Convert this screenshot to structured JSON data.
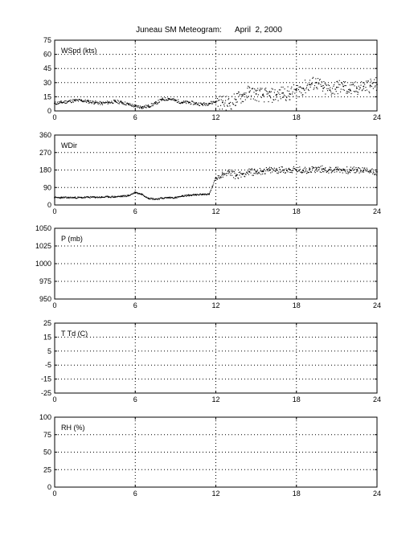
{
  "title": {
    "station": "Juneau SM Meteogram:",
    "date": "April  2, 2000"
  },
  "chart_data": [
    {
      "type": "scatter",
      "label": "WSpd (kts)",
      "xlim": [
        0,
        24
      ],
      "xticks": [
        "0",
        "6",
        "12",
        "18",
        "24"
      ],
      "ylim": [
        0,
        75
      ],
      "yticks": [
        "0",
        "15",
        "30",
        "45",
        "60",
        "75"
      ],
      "grid": true,
      "series": [
        {
          "x": [
            0,
            0.5,
            1,
            1.5,
            2,
            2.5,
            3,
            3.5,
            4,
            4.5,
            5,
            5.5,
            6,
            6.5,
            7,
            7.5,
            8,
            8.5,
            9,
            9.5,
            10,
            10.5,
            11,
            11.5,
            12,
            12.5,
            13,
            13.5,
            14,
            14.5,
            15,
            15.5,
            16,
            16.5,
            17,
            17.5,
            18,
            18.5,
            19,
            19.5,
            20,
            20.5,
            21,
            21.5,
            22,
            22.5,
            23,
            23.5,
            24
          ],
          "y": [
            8,
            9,
            10,
            11,
            11,
            10,
            9,
            8,
            9,
            10,
            9,
            7,
            5,
            4,
            5,
            8,
            12,
            13,
            11,
            9,
            9,
            8,
            7,
            8,
            10,
            9,
            8,
            12,
            16,
            20,
            18,
            17,
            16,
            17,
            19,
            18,
            22,
            24,
            28,
            30,
            24,
            22,
            25,
            26,
            22,
            24,
            26,
            27,
            28
          ]
        }
      ]
    },
    {
      "type": "scatter",
      "label": "WDir",
      "xlim": [
        0,
        24
      ],
      "xticks": [
        "0",
        "6",
        "12",
        "18",
        "24"
      ],
      "ylim": [
        0,
        360
      ],
      "yticks": [
        "0",
        "90",
        "180",
        "270",
        "360"
      ],
      "grid": true,
      "series": [
        {
          "x": [
            0,
            0.5,
            1,
            1.5,
            2,
            2.5,
            3,
            3.5,
            4,
            4.5,
            5,
            5.5,
            6,
            6.5,
            7,
            7.5,
            8,
            8.5,
            9,
            9.5,
            10,
            10.5,
            11,
            11.5,
            12,
            12.5,
            13,
            13.5,
            14,
            14.5,
            15,
            15.5,
            16,
            16.5,
            17,
            17.5,
            18,
            18.5,
            19,
            19.5,
            20,
            20.5,
            21,
            21.5,
            22,
            22.5,
            23,
            23.5,
            24
          ],
          "y": [
            38,
            38,
            38,
            38,
            38,
            40,
            40,
            40,
            42,
            42,
            45,
            48,
            65,
            55,
            35,
            30,
            35,
            38,
            38,
            45,
            50,
            52,
            55,
            55,
            140,
            160,
            170,
            150,
            160,
            170,
            170,
            175,
            178,
            180,
            180,
            182,
            180,
            178,
            182,
            185,
            185,
            180,
            182,
            180,
            178,
            180,
            178,
            175,
            170
          ]
        }
      ]
    },
    {
      "type": "scatter",
      "label": "P (mb)",
      "xlim": [
        0,
        24
      ],
      "xticks": [
        "0",
        "6",
        "12",
        "18",
        "24"
      ],
      "ylim": [
        950,
        1050
      ],
      "yticks": [
        "950",
        "975",
        "1000",
        "1025",
        "1050"
      ],
      "grid": true,
      "series": []
    },
    {
      "type": "scatter",
      "label": "T Td (C)",
      "xlim": [
        0,
        24
      ],
      "xticks": [
        "0",
        "6",
        "12",
        "18",
        "24"
      ],
      "ylim": [
        -25,
        25
      ],
      "yticks": [
        "-25",
        "-15",
        "-5",
        "5",
        "15",
        "25"
      ],
      "grid": true,
      "series": []
    },
    {
      "type": "scatter",
      "label": "RH (%)",
      "xlim": [
        0,
        24
      ],
      "xticks": [
        "0",
        "6",
        "12",
        "18",
        "24"
      ],
      "ylim": [
        0,
        100
      ],
      "yticks": [
        "0",
        "25",
        "50",
        "75",
        "100"
      ],
      "grid": true,
      "series": []
    }
  ]
}
